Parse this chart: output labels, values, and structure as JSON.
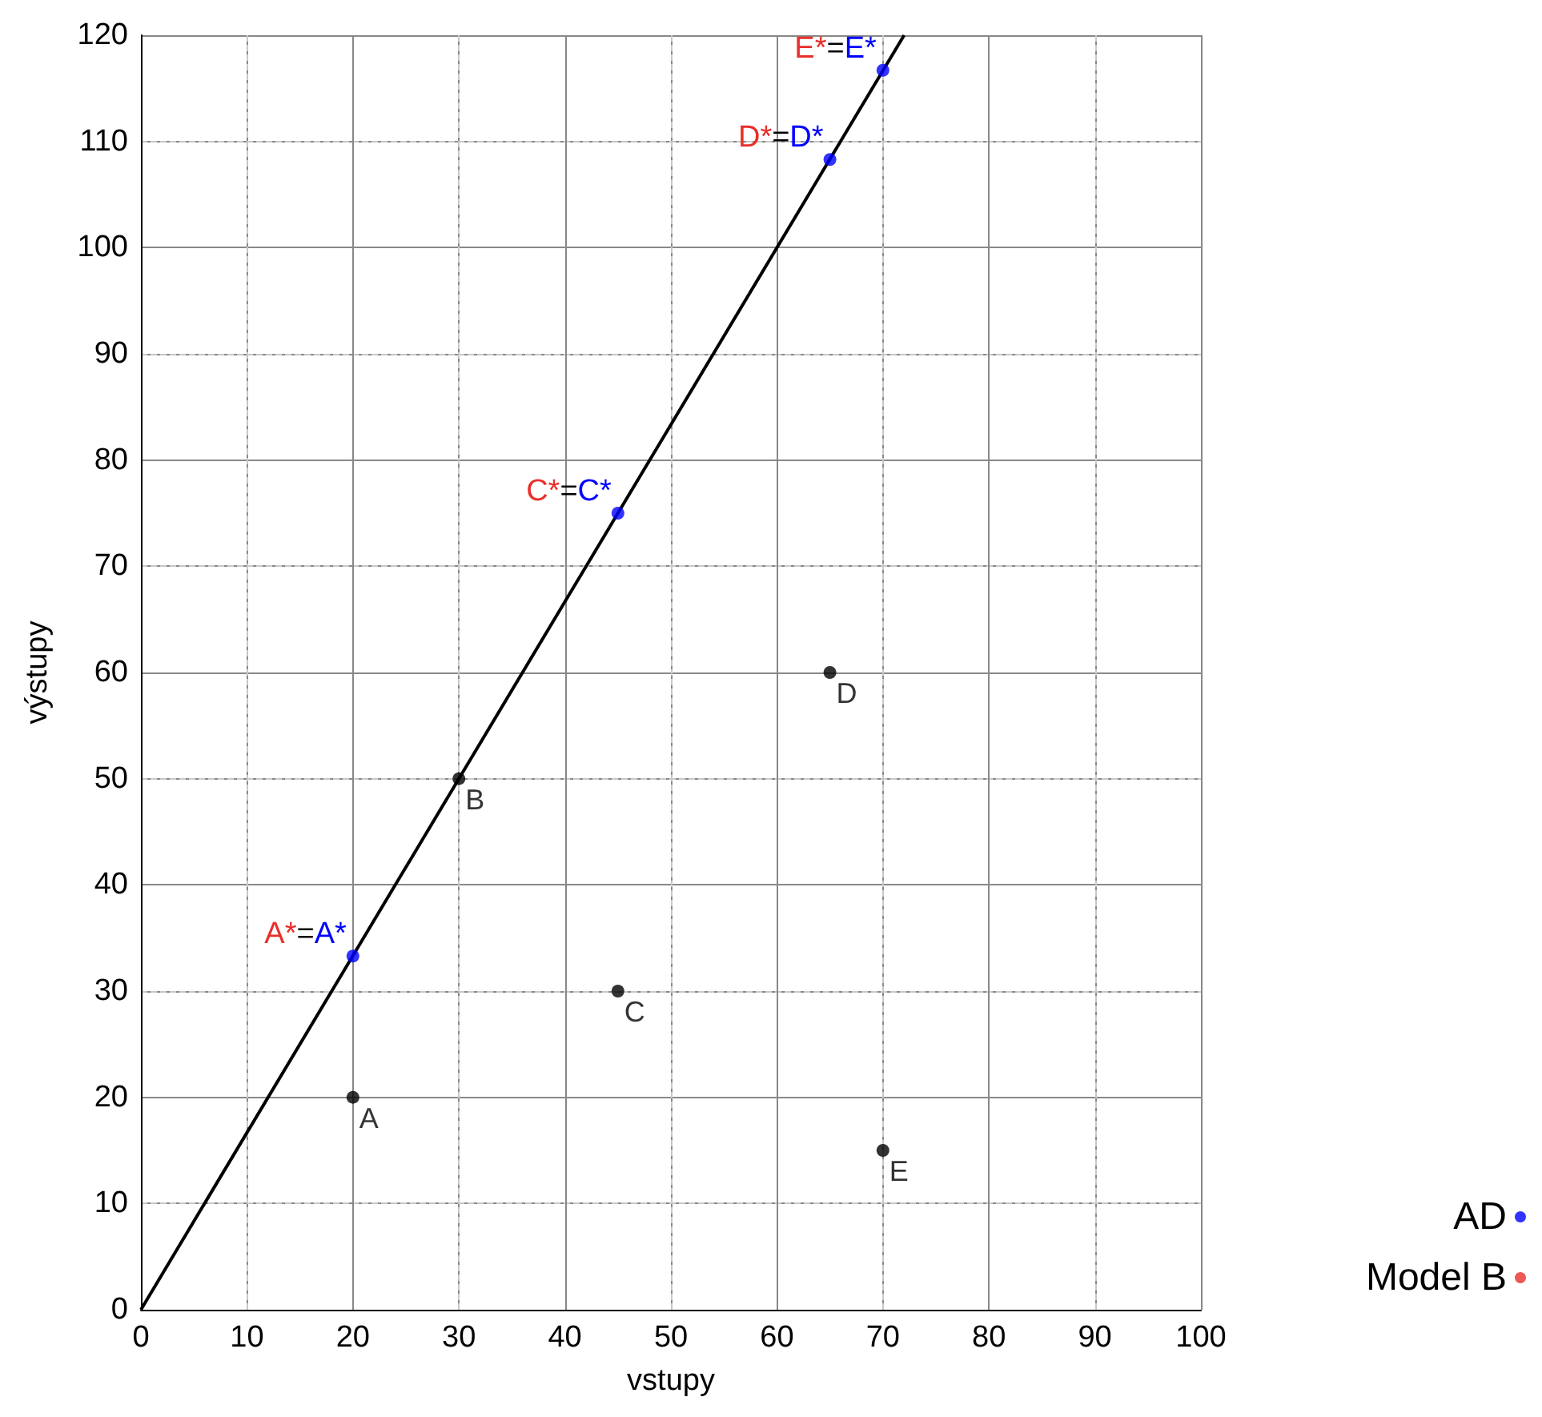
{
  "chart_data": {
    "type": "scatter",
    "xlabel": "vstupy",
    "ylabel": "výstupy",
    "xlim": [
      0,
      100
    ],
    "xticks": [
      0,
      10,
      20,
      30,
      40,
      50,
      60,
      70,
      80,
      90,
      100
    ],
    "ylim": [
      0,
      120
    ],
    "yticks": [
      0,
      10,
      20,
      30,
      40,
      50,
      60,
      70,
      80,
      90,
      100,
      110,
      120
    ],
    "grid": true,
    "legend": "bottom right",
    "marker": "circle",
    "series": [
      {
        "type": "line",
        "color": "#000000",
        "x": [
          0,
          72
        ],
        "values": [
          0,
          120
        ],
        "marker": "none"
      },
      {
        "color": "#000000",
        "x": [
          20,
          30,
          45,
          65,
          70
        ],
        "values": [
          20,
          50,
          30,
          60,
          15
        ],
        "value_labels": [
          "A",
          "B",
          "C",
          "D",
          "E"
        ]
      },
      {
        "name": "AD",
        "color": "#0000ff",
        "x": [
          20,
          45,
          65,
          70
        ],
        "values": [
          33.3,
          75,
          108.3,
          116.7
        ]
      },
      {
        "name": "Model B",
        "color": "#e8302a"
      }
    ],
    "annotations": [
      {
        "text": "A*=A*",
        "x": 20,
        "y": 33.3
      },
      {
        "text": "C*=C*",
        "x": 45,
        "y": 75
      },
      {
        "text": "D*=D*",
        "x": 65,
        "y": 108.3
      },
      {
        "text": "E*=E*",
        "x": 70,
        "y": 116.7
      }
    ]
  }
}
